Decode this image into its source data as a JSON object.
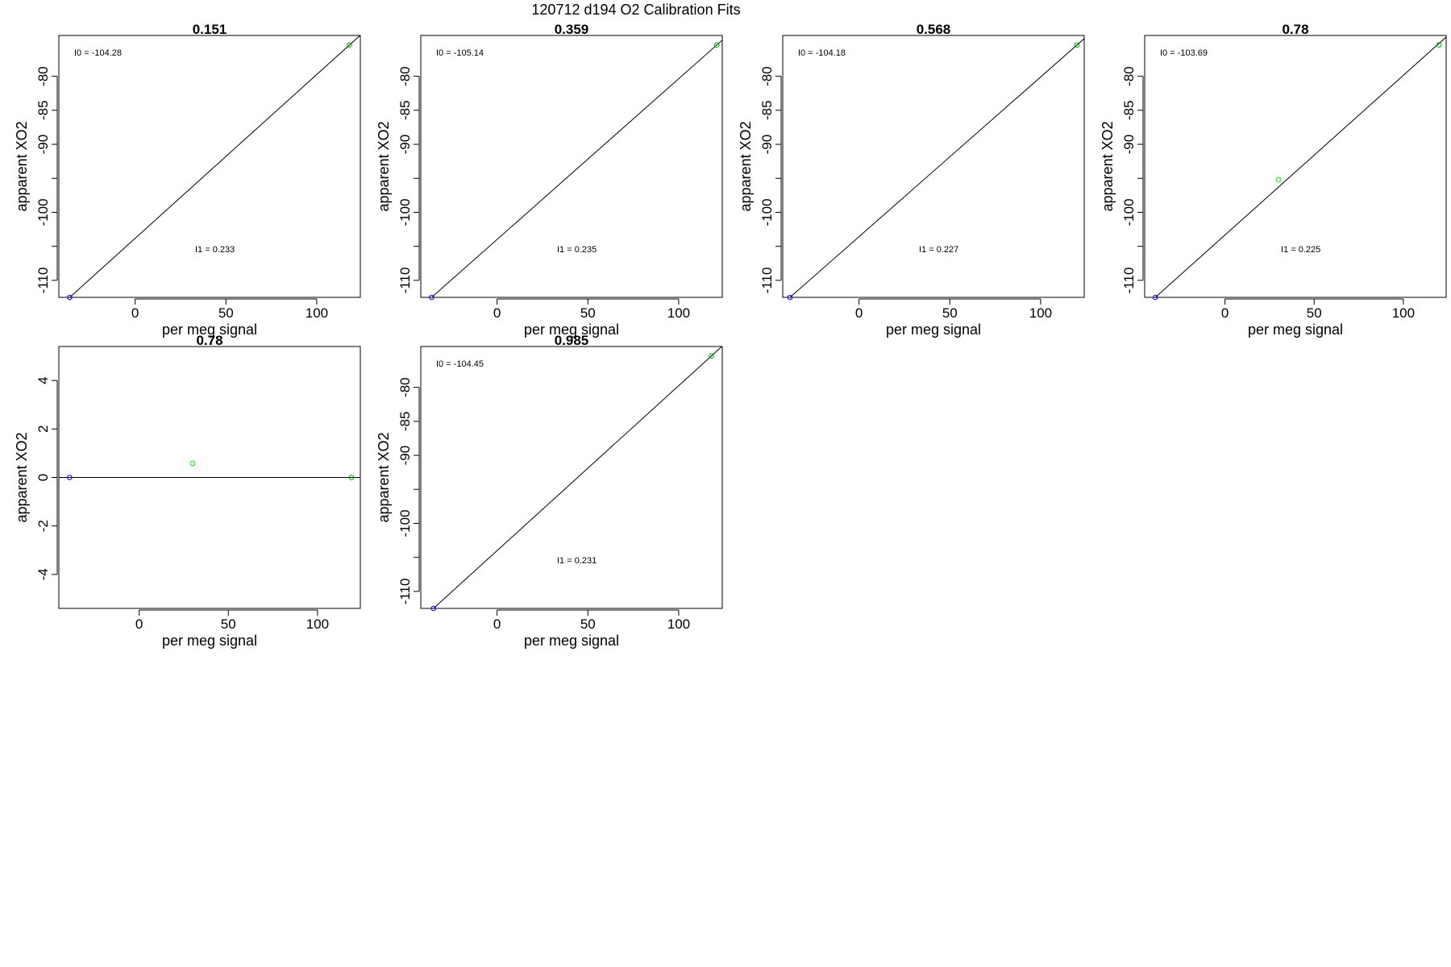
{
  "figure": {
    "title": "120712   d194   O2 Calibration Fits"
  },
  "chart_data": [
    {
      "type": "scatter",
      "title": "0.151",
      "xlabel": "per meg signal",
      "ylabel": "apparent XO2",
      "xlim": [
        -42,
        124
      ],
      "ylim": [
        -112.5,
        -74.0
      ],
      "xticks": [
        0,
        50,
        100
      ],
      "yticks": [
        -80,
        -85,
        -90,
        -95,
        -100,
        -105,
        -110
      ],
      "ytick_labels": [
        "-80",
        "-85",
        "-90",
        "",
        "-100",
        "",
        "-110"
      ],
      "points": [
        {
          "x": -36,
          "y": -112.5,
          "color": "#0000ff"
        },
        {
          "x": 118,
          "y": -75.4,
          "color": "#00aa00"
        }
      ],
      "fit": {
        "slope": 0.2409,
        "intercept": -103.83
      },
      "annotations": [
        {
          "label": "I0 =",
          "value": "-104.28",
          "pos": "top-left"
        },
        {
          "label": "I1 =",
          "value": "0.233",
          "pos": "lower-middle"
        }
      ]
    },
    {
      "type": "scatter",
      "title": "0.359",
      "xlabel": "per meg signal",
      "ylabel": "apparent XO2",
      "xlim": [
        -42,
        124
      ],
      "ylim": [
        -112.5,
        -74.0
      ],
      "xticks": [
        0,
        50,
        100
      ],
      "yticks": [
        -80,
        -85,
        -90,
        -95,
        -100,
        -105,
        -110
      ],
      "ytick_labels": [
        "-80",
        "-85",
        "-90",
        "",
        "-100",
        "",
        "-110"
      ],
      "points": [
        {
          "x": -36,
          "y": -112.5,
          "color": "#0000ff"
        },
        {
          "x": 121,
          "y": -75.4,
          "color": "#00aa00"
        }
      ],
      "fit": {
        "slope": 0.2363,
        "intercept": -103.99
      },
      "annotations": [
        {
          "label": "I0 =",
          "value": "-105.14",
          "pos": "top-left"
        },
        {
          "label": "I1 =",
          "value": "0.235",
          "pos": "lower-middle"
        }
      ]
    },
    {
      "type": "scatter",
      "title": "0.568",
      "xlabel": "per meg signal",
      "ylabel": "apparent XO2",
      "xlim": [
        -42,
        124
      ],
      "ylim": [
        -112.5,
        -74.0
      ],
      "xticks": [
        0,
        50,
        100
      ],
      "yticks": [
        -80,
        -85,
        -90,
        -95,
        -100,
        -105,
        -110
      ],
      "ytick_labels": [
        "-80",
        "-85",
        "-90",
        "",
        "-100",
        "",
        "-110"
      ],
      "points": [
        {
          "x": -38,
          "y": -112.5,
          "color": "#0000ff"
        },
        {
          "x": 120,
          "y": -75.4,
          "color": "#00aa00"
        }
      ],
      "fit": {
        "slope": 0.2348,
        "intercept": -103.58
      },
      "annotations": [
        {
          "label": "I0 =",
          "value": "-104.18",
          "pos": "top-left"
        },
        {
          "label": "I1 =",
          "value": "0.227",
          "pos": "lower-middle"
        }
      ]
    },
    {
      "type": "scatter",
      "title": "0.78",
      "xlabel": "per meg signal",
      "ylabel": "apparent XO2",
      "xlim": [
        -45,
        124
      ],
      "ylim": [
        -112.5,
        -74.0
      ],
      "xticks": [
        0,
        50,
        100
      ],
      "yticks": [
        -80,
        -85,
        -90,
        -95,
        -100,
        -105,
        -110
      ],
      "ytick_labels": [
        "-80",
        "-85",
        "-90",
        "",
        "-100",
        "",
        "-110"
      ],
      "points": [
        {
          "x": -39,
          "y": -112.5,
          "color": "#0000ff"
        },
        {
          "x": 30,
          "y": -95.2,
          "color": "#00ee00"
        },
        {
          "x": 120,
          "y": -75.4,
          "color": "#00aa00"
        }
      ],
      "fit": {
        "slope": 0.2348,
        "intercept": -103.34
      },
      "annotations": [
        {
          "label": "I0 =",
          "value": "-103.69",
          "pos": "top-left"
        },
        {
          "label": "I1 =",
          "value": "0.225",
          "pos": "lower-middle"
        }
      ]
    },
    {
      "type": "scatter",
      "title": "0.78",
      "xlabel": "per meg signal",
      "ylabel": "apparent XO2",
      "xlim": [
        -45,
        124
      ],
      "ylim": [
        -5.4,
        5.4
      ],
      "xticks": [
        0,
        50,
        100
      ],
      "yticks": [
        4,
        2,
        0,
        -2,
        -4
      ],
      "ytick_labels": [
        "4",
        "2",
        "0",
        "-2",
        "-4"
      ],
      "points": [
        {
          "x": -39,
          "y": 0.0,
          "color": "#0000ff"
        },
        {
          "x": 30,
          "y": 0.58,
          "color": "#00ee00"
        },
        {
          "x": 119,
          "y": 0.0,
          "color": "#00aa00"
        }
      ],
      "fit": {
        "slope": 0.0,
        "intercept": 0.0
      },
      "annotations": []
    },
    {
      "type": "scatter",
      "title": "0.985",
      "xlabel": "per meg signal",
      "ylabel": "apparent XO2",
      "xlim": [
        -42,
        124
      ],
      "ylim": [
        -112.5,
        -74.0
      ],
      "xticks": [
        0,
        50,
        100
      ],
      "yticks": [
        -80,
        -85,
        -90,
        -95,
        -100,
        -105,
        -110
      ],
      "ytick_labels": [
        "-80",
        "-85",
        "-90",
        "",
        "-100",
        "",
        "-110"
      ],
      "points": [
        {
          "x": -35,
          "y": -112.5,
          "color": "#0000ff"
        },
        {
          "x": 118,
          "y": -75.4,
          "color": "#00aa00"
        }
      ],
      "fit": {
        "slope": 0.2425,
        "intercept": -104.01
      },
      "annotations": [
        {
          "label": "I0 =",
          "value": "-104.45",
          "pos": "top-left"
        },
        {
          "label": "I1 =",
          "value": "0.231",
          "pos": "lower-middle"
        }
      ]
    }
  ]
}
